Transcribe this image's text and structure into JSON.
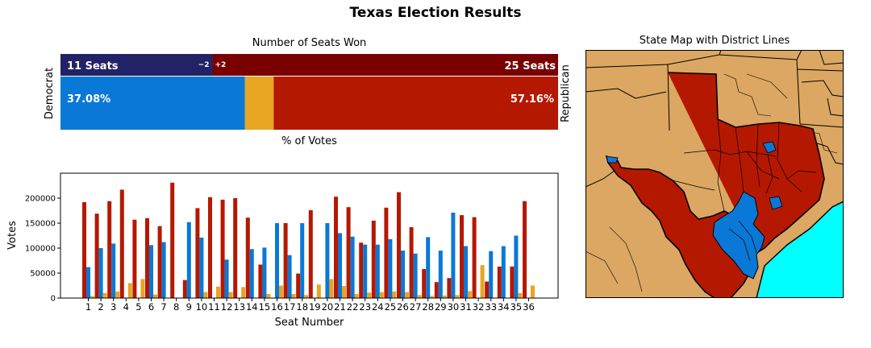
{
  "title": "Texas Election Results",
  "seats_panel": {
    "title": "Number of Seats Won",
    "dem_label": "Democrat",
    "rep_label": "Republican",
    "dem_seats_text": "11 Seats",
    "rep_seats_text": "25 Seats",
    "dem_change": "−2",
    "rep_change": "+2",
    "dem_pct_text": "37.08%",
    "rep_pct_text": "57.16%",
    "votes_xlabel": "% of Votes"
  },
  "map_panel": {
    "title": "State Map with District Lines"
  },
  "colors": {
    "dem_seats": "#222266",
    "rep_seats": "#7a0000",
    "dem": "#0a78d6",
    "rep": "#b51800",
    "other": "#e8a521",
    "land": "#dba762",
    "water": "#00ffff"
  },
  "chart_data": [
    {
      "type": "bar",
      "title": "Number of Seats Won",
      "series": [
        {
          "name": "Democrat",
          "seats": 11,
          "vote_pct": 37.08
        },
        {
          "name": "Republican",
          "seats": 25,
          "vote_pct": 57.16
        }
      ],
      "other_vote_pct": 5.76
    },
    {
      "type": "bar",
      "xlabel": "Seat Number",
      "ylabel": "Votes",
      "ylim": [
        0,
        250000
      ],
      "yticks": [
        0,
        50000,
        100000,
        150000,
        200000
      ],
      "categories": [
        "1",
        "2",
        "3",
        "4",
        "5",
        "6",
        "7",
        "8",
        "9",
        "10",
        "11",
        "12",
        "13",
        "14",
        "15",
        "16",
        "17",
        "18",
        "19",
        "20",
        "21",
        "22",
        "23",
        "24",
        "25",
        "26",
        "27",
        "28",
        "29",
        "30",
        "31",
        "32",
        "33",
        "34",
        "35",
        "36"
      ],
      "series": [
        {
          "values": [
            192000,
            169000,
            194000,
            217000,
            157000,
            160000,
            144000,
            231000,
            36000,
            180000,
            202000,
            197000,
            200000,
            161000,
            67000,
            0,
            150000,
            49000,
            176000,
            0,
            203000,
            182000,
            111000,
            155000,
            181000,
            212000,
            142000,
            58000,
            32000,
            40000,
            166000,
            162000,
            33000,
            63000,
            63000,
            194000
          ]
        },
        {
          "values": [
            62000,
            100000,
            109000,
            0,
            0,
            106000,
            112000,
            0,
            152000,
            121000,
            0,
            77000,
            0,
            98000,
            101000,
            150000,
            86000,
            150000,
            0,
            150000,
            130000,
            123000,
            107000,
            107000,
            118000,
            95000,
            89000,
            122000,
            95000,
            171000,
            104000,
            0,
            94000,
            104000,
            125000,
            0
          ]
        },
        {
          "values": [
            4000,
            10000,
            13000,
            30000,
            38000,
            7000,
            0,
            0,
            0,
            12000,
            23000,
            12000,
            22000,
            0,
            8000,
            25000,
            8000,
            6000,
            27000,
            38000,
            24000,
            8000,
            11000,
            12000,
            13000,
            12000,
            6000,
            4000,
            5000,
            6000,
            14000,
            66000,
            0,
            0,
            10000,
            25000
          ]
        }
      ]
    }
  ]
}
